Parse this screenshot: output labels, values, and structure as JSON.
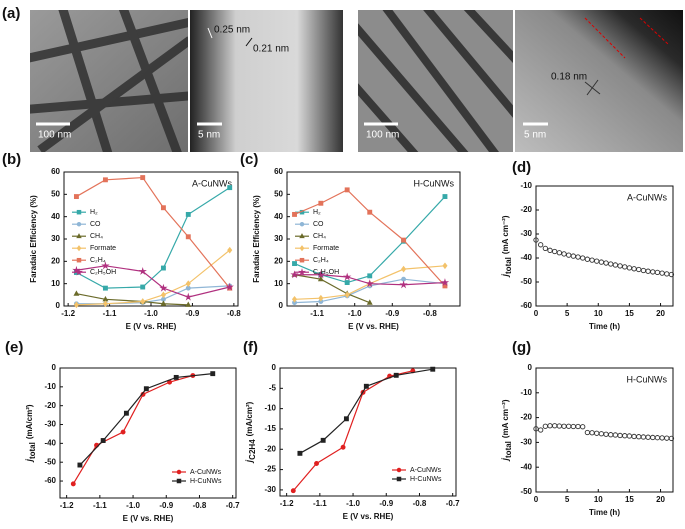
{
  "panel_label": "(a)",
  "images": [
    {
      "scale_bar": "100 nm"
    },
    {
      "scale_bar": "5 nm",
      "labels": [
        "0.25 nm",
        "0.21 nm"
      ]
    },
    {
      "scale_bar": "100 nm"
    },
    {
      "scale_bar": "5 nm",
      "labels": [
        "0.18 nm"
      ]
    }
  ],
  "chart_data": [
    {
      "type": "line",
      "panel": "(b)",
      "annotation": "A-CuNWs",
      "xlabel": "E (V vs. RHE)",
      "ylabel": "Faradaic Efficiency (%)",
      "xlim": [
        -1.21,
        -0.79
      ],
      "xticks": [
        -1.2,
        -1.1,
        {
          "value": -1.0,
          "label": "-1.0"
        },
        -0.9,
        -0.8
      ],
      "ylim": [
        0,
        60
      ],
      "yticks": [
        0,
        10,
        20,
        30,
        40,
        50,
        60
      ],
      "legend": "center-left",
      "x": [
        -1.18,
        -1.11,
        -1.02,
        -0.97,
        -0.91,
        -0.81
      ],
      "series": [
        {
          "name": "H₂",
          "color": "#36a9a9",
          "marker": "square",
          "values": [
            15,
            8,
            8.5,
            17,
            41,
            53
          ]
        },
        {
          "name": "CO",
          "color": "#8fb6d6",
          "marker": "circle",
          "values": [
            1,
            1,
            1.5,
            3,
            8,
            9
          ]
        },
        {
          "name": "CH₄",
          "color": "#6b6b2a",
          "marker": "triangle",
          "values": [
            5.5,
            3,
            2,
            1,
            0.5,
            null
          ]
        },
        {
          "name": "Formate",
          "color": "#f3c26a",
          "marker": "diamond",
          "values": [
            0.5,
            1,
            2,
            5,
            10,
            25
          ]
        },
        {
          "name": "C₂H₄",
          "color": "#e3735a",
          "marker": "square",
          "values": [
            49,
            56.5,
            57.5,
            44,
            31,
            8
          ]
        },
        {
          "name": "C₂H₅OH",
          "color": "#b0307f",
          "marker": "star",
          "values": [
            16,
            18,
            15.5,
            8,
            4,
            8.5
          ]
        }
      ]
    },
    {
      "type": "line",
      "panel": "(c)",
      "annotation": "H-CuNWs",
      "xlabel": "E (V vs. RHE)",
      "ylabel": "Faradaic Efficiency (%)",
      "xlim": [
        -1.18,
        -0.72
      ],
      "xticks": [
        -1.1,
        {
          "value": -1.0,
          "label": "-1.0"
        },
        -0.9,
        -0.8
      ],
      "ylim": [
        0,
        60
      ],
      "yticks": [
        0,
        10,
        20,
        30,
        40,
        50,
        60
      ],
      "legend": "center-left",
      "x": [
        -1.16,
        -1.09,
        -1.02,
        -0.96,
        -0.87,
        -0.76
      ],
      "series": [
        {
          "name": "H₂",
          "color": "#36a9a9",
          "marker": "square",
          "values": [
            19,
            14,
            10.5,
            13.5,
            29,
            49
          ]
        },
        {
          "name": "CO",
          "color": "#8fb6d6",
          "marker": "circle",
          "values": [
            1.5,
            2,
            4.5,
            9,
            12,
            10
          ]
        },
        {
          "name": "CH₄",
          "color": "#6b6b2a",
          "marker": "triangle",
          "values": [
            14,
            12,
            5.5,
            1.5,
            null,
            null
          ]
        },
        {
          "name": "Formate",
          "color": "#f3c26a",
          "marker": "diamond",
          "values": [
            3,
            3.5,
            5,
            10,
            16.5,
            18
          ]
        },
        {
          "name": "C₂H₄",
          "color": "#e3735a",
          "marker": "square",
          "values": [
            41,
            46,
            52,
            42,
            29.5,
            9
          ]
        },
        {
          "name": "C₂H₅OH",
          "color": "#b0307f",
          "marker": "star",
          "values": [
            14,
            14,
            13,
            10,
            9.5,
            10.5
          ]
        }
      ]
    },
    {
      "type": "scatter",
      "panel": "(d)",
      "annotation": "A-CuNWs",
      "xlabel": "Time (h)",
      "ylabel": {
        "symbol": "j",
        "subscript": "total",
        "unit": "(mA cm⁻²)"
      },
      "xlim": [
        0,
        22
      ],
      "xticks": [
        0,
        5,
        10,
        15,
        20
      ],
      "ylim": [
        -60,
        -10
      ],
      "yticks": [
        -10,
        -20,
        -30,
        -40,
        -50,
        -60
      ],
      "x": [
        0,
        0.75,
        1.5,
        2.25,
        3,
        3.75,
        4.5,
        5.25,
        6,
        6.75,
        7.5,
        8.25,
        9,
        9.75,
        10.5,
        11.25,
        12,
        12.75,
        13.5,
        14.25,
        15,
        15.75,
        16.5,
        17.25,
        18,
        18.75,
        19.5,
        20.25,
        21,
        21.75
      ],
      "series": [
        {
          "color": "#333333",
          "marker": "circle",
          "values": [
            -32.5,
            -34.5,
            -36,
            -36.8,
            -37.3,
            -37.8,
            -38.3,
            -38.8,
            -39.2,
            -39.6,
            -40,
            -40.5,
            -40.9,
            -41.3,
            -41.7,
            -42.1,
            -42.5,
            -42.9,
            -43.3,
            -43.7,
            -44.1,
            -44.5,
            -44.8,
            -45.2,
            -45.5,
            -45.8,
            -46,
            -46.3,
            -46.6,
            -46.9
          ]
        }
      ]
    },
    {
      "type": "line",
      "panel": "(e)",
      "xlabel": "E (V vs. RHE)",
      "ylabel": {
        "symbol": "j",
        "subscript": "total",
        "unit": "(mA/cm²)"
      },
      "xlim": [
        -1.22,
        -0.69
      ],
      "xticks": [
        -1.2,
        -1.1,
        {
          "value": -1.0,
          "label": "-1.0"
        },
        -0.9,
        -0.8,
        -0.7
      ],
      "ylim": [
        -69,
        0
      ],
      "yticks": [
        0,
        -10,
        -20,
        -30,
        -40,
        -50,
        -60
      ],
      "legend": "lower-right",
      "series": [
        {
          "name": "A-CuNWs",
          "color": "#e02020",
          "marker": "circle",
          "x": [
            -1.18,
            -1.11,
            -1.03,
            -0.97,
            -0.89,
            -0.82
          ],
          "values": [
            -61.5,
            -41,
            -34,
            -14,
            -7.5,
            -4
          ]
        },
        {
          "name": "H-CuNWs",
          "color": "#222222",
          "marker": "square",
          "x": [
            -1.16,
            -1.09,
            -1.02,
            -0.96,
            -0.87,
            -0.76
          ],
          "values": [
            -51.5,
            -38.5,
            -24,
            -11,
            -5,
            -3
          ]
        }
      ]
    },
    {
      "type": "line",
      "panel": "(f)",
      "xlabel": "E (V vs. RHE)",
      "ylabel": {
        "symbol": "j",
        "subscript": "C2H4",
        "unit": "(mA/cm²)"
      },
      "xlim": [
        -1.22,
        -0.69
      ],
      "xticks": [
        -1.2,
        -1.1,
        {
          "value": -1.0,
          "label": "-1.0"
        },
        -0.9,
        -0.8,
        -0.7
      ],
      "ylim": [
        -31.5,
        0
      ],
      "yticks": [
        0,
        -5,
        -10,
        -15,
        -20,
        -25,
        -30
      ],
      "legend": "lower-right",
      "series": [
        {
          "name": "A-CuNWs",
          "color": "#e02020",
          "marker": "circle",
          "x": [
            -1.18,
            -1.11,
            -1.03,
            -0.97,
            -0.89,
            -0.82
          ],
          "values": [
            -30.2,
            -23.5,
            -19.5,
            -6,
            -2,
            -0.7
          ]
        },
        {
          "name": "H-CuNWs",
          "color": "#222222",
          "marker": "square",
          "x": [
            -1.16,
            -1.09,
            -1.02,
            -0.96,
            -0.87,
            -0.76
          ],
          "values": [
            -21,
            -17.8,
            -12.5,
            -4.5,
            -1.8,
            -0.3
          ]
        }
      ]
    },
    {
      "type": "scatter",
      "panel": "(g)",
      "annotation": "H-CuNWs",
      "xlabel": "Time (h)",
      "ylabel": {
        "symbol": "j",
        "subscript": "total",
        "unit": "(mA cm⁻²)"
      },
      "xlim": [
        0,
        22
      ],
      "xticks": [
        0,
        5,
        10,
        15,
        20
      ],
      "ylim": [
        -50,
        0
      ],
      "yticks": [
        0,
        -10,
        -20,
        -30,
        -40,
        -50
      ],
      "x": [
        0,
        0.75,
        1.5,
        2.25,
        3,
        3.75,
        4.5,
        5.25,
        6,
        6.75,
        7.5,
        8.25,
        9,
        9.75,
        10.5,
        11.25,
        12,
        12.75,
        13.5,
        14.25,
        15,
        15.75,
        16.5,
        17.25,
        18,
        18.75,
        19.5,
        20.25,
        21,
        21.75
      ],
      "series": [
        {
          "color": "#333333",
          "marker": "circle",
          "values": [
            -24.5,
            -25,
            -23.5,
            -23.3,
            -23.3,
            -23.4,
            -23.5,
            -23.5,
            -23.6,
            -23.6,
            -23.7,
            -26,
            -26.1,
            -26.3,
            -26.5,
            -26.7,
            -26.9,
            -27,
            -27.2,
            -27.3,
            -27.4,
            -27.6,
            -27.7,
            -27.8,
            -27.9,
            -28,
            -28.1,
            -28.2,
            -28.3,
            -28.4
          ]
        }
      ]
    }
  ]
}
